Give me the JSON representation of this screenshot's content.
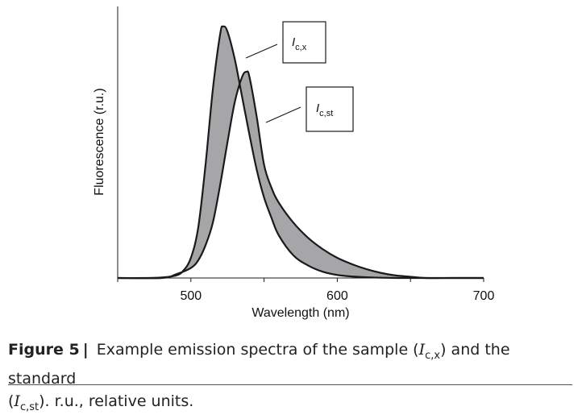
{
  "chart_data": {
    "type": "area",
    "xlabel": "Wavelength (nm)",
    "ylabel": "Fluorescence (r.u.)",
    "xlim": [
      450,
      700
    ],
    "ylim": [
      0,
      1.08
    ],
    "x_ticks": [
      500,
      600,
      700
    ],
    "x_ticks_minor": [
      450,
      500,
      550,
      600,
      650,
      700
    ],
    "grid": false,
    "series": [
      {
        "name": "I_c,x",
        "x": [
          450,
          470,
          480,
          490,
          495,
          500,
          505,
          510,
          515,
          520,
          522,
          525,
          530,
          535,
          540,
          545,
          550,
          555,
          560,
          570,
          580,
          590,
          600,
          610,
          620,
          640,
          660,
          680,
          700
        ],
        "y": [
          0.0,
          0.0,
          0.002,
          0.01,
          0.03,
          0.08,
          0.2,
          0.45,
          0.75,
          0.97,
          1.0,
          0.98,
          0.87,
          0.72,
          0.57,
          0.43,
          0.32,
          0.24,
          0.17,
          0.09,
          0.05,
          0.025,
          0.012,
          0.006,
          0.003,
          0.0,
          0.0,
          0.0,
          0.0
        ]
      },
      {
        "name": "I_c,st",
        "x": [
          450,
          480,
          490,
          500,
          505,
          510,
          515,
          520,
          525,
          530,
          535,
          538,
          540,
          545,
          550,
          555,
          560,
          570,
          580,
          590,
          600,
          610,
          620,
          630,
          640,
          650,
          660,
          680,
          700
        ],
        "y": [
          0.0,
          0.0,
          0.015,
          0.04,
          0.07,
          0.13,
          0.22,
          0.37,
          0.54,
          0.7,
          0.8,
          0.82,
          0.8,
          0.64,
          0.45,
          0.36,
          0.3,
          0.22,
          0.16,
          0.115,
          0.08,
          0.055,
          0.035,
          0.02,
          0.01,
          0.005,
          0.0,
          0.0,
          0.0
        ]
      }
    ],
    "annotations": [
      {
        "series": 0,
        "base": "I",
        "sub": "c,x"
      },
      {
        "series": 1,
        "base": "I",
        "sub": "c,st"
      }
    ],
    "fill_between_color": "#a6a6a8",
    "line_color": "#1a1a1a"
  },
  "caption": {
    "label": "Figure 5",
    "separator": "|",
    "text_1": " Example emission spectra of the sample (",
    "var_1": "I",
    "sub_1": "c,x",
    "text_2": ") and the standard ",
    "text_3": "(",
    "var_2": "I",
    "sub_2": "c,st",
    "text_4": "). r.u., relative units."
  }
}
